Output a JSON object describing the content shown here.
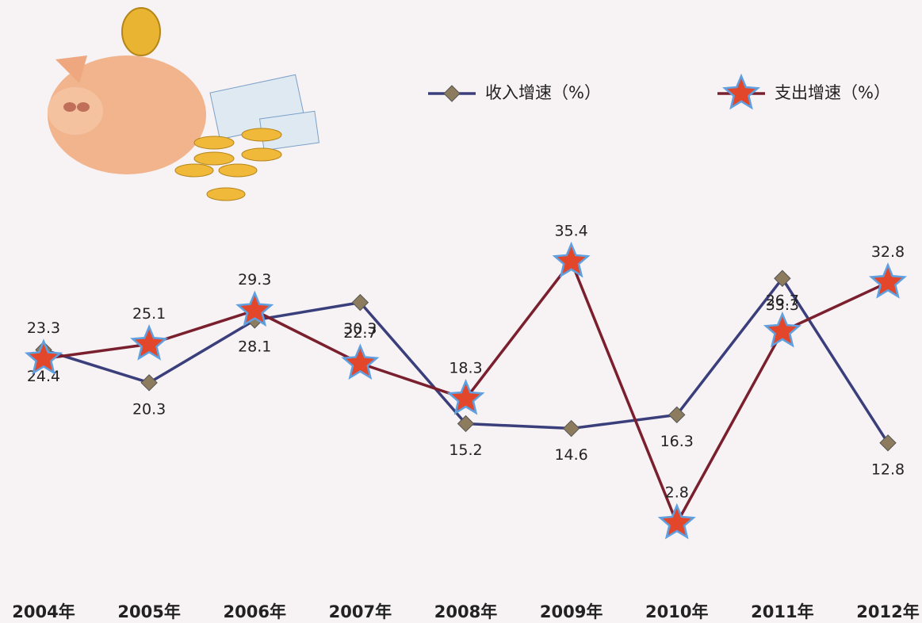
{
  "chart_data": {
    "type": "line",
    "categories": [
      "2004年",
      "2005年",
      "2006年",
      "2007年",
      "2008年",
      "2009年",
      "2010年",
      "2011年",
      "2012年"
    ],
    "series": [
      {
        "name": "收入增速（%）",
        "color": "#3a3f7c",
        "marker": "diamond",
        "marker_color": "#8c7b5c",
        "values": [
          24.4,
          20.3,
          28.1,
          30.3,
          15.2,
          14.6,
          16.3,
          33.3,
          12.8
        ]
      },
      {
        "name": "支出增速（%）",
        "color": "#7a1f2e",
        "marker": "star",
        "marker_color": "#e2472c",
        "values": [
          23.3,
          25.1,
          29.3,
          22.7,
          18.3,
          35.4,
          2.8,
          26.7,
          32.8
        ]
      }
    ]
  }
}
